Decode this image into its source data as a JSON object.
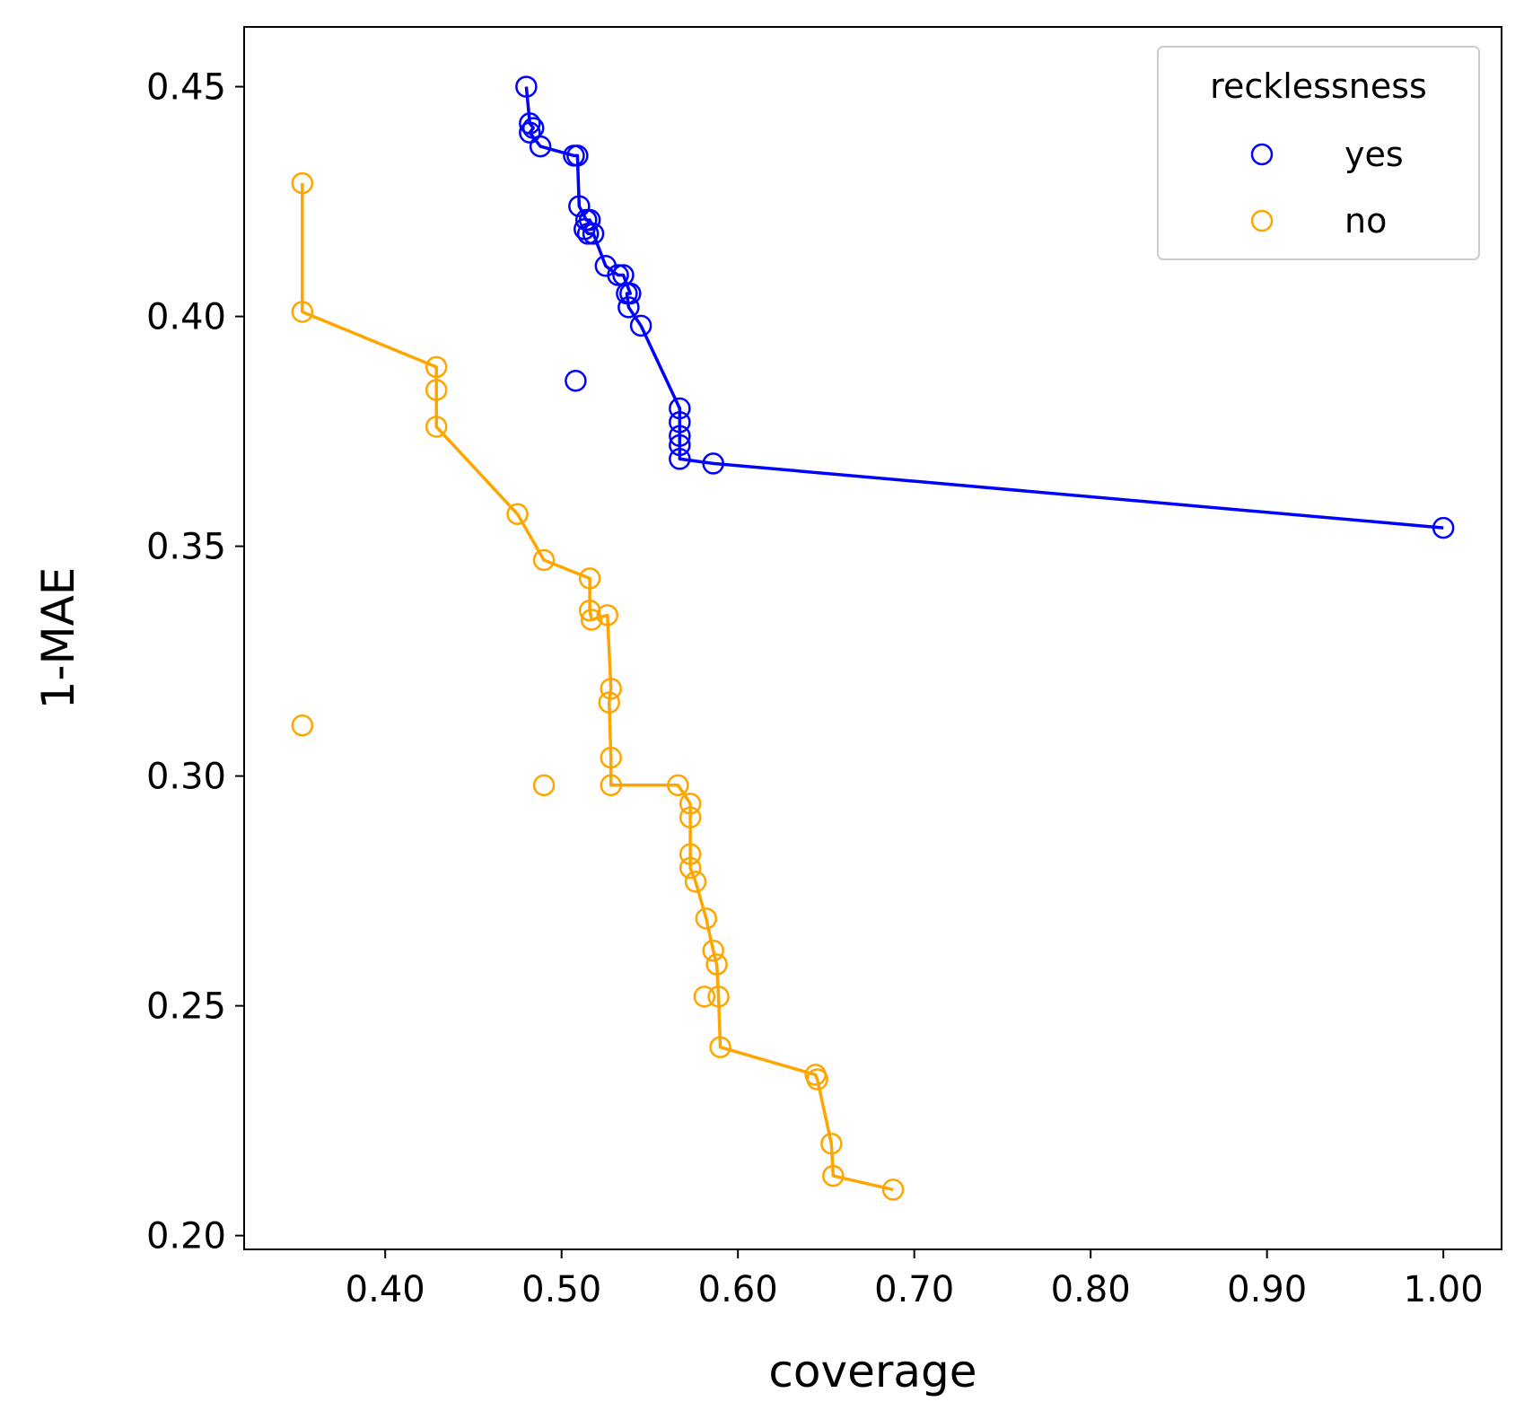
{
  "chart_data": {
    "type": "scatter",
    "xlabel": "coverage",
    "ylabel": "1-MAE",
    "xlim": [
      0.32,
      1.033
    ],
    "ylim": [
      0.197,
      0.463
    ],
    "xticks": [
      0.4,
      0.5,
      0.6,
      0.7,
      0.8,
      0.9,
      1.0
    ],
    "xtick_labels": [
      "0.40",
      "0.50",
      "0.60",
      "0.70",
      "0.80",
      "0.90",
      "1.00"
    ],
    "yticks": [
      0.2,
      0.25,
      0.3,
      0.35,
      0.4,
      0.45
    ],
    "ytick_labels": [
      "0.20",
      "0.25",
      "0.30",
      "0.35",
      "0.40",
      "0.45"
    ],
    "grid": false,
    "legend": {
      "title": "recklessness",
      "position": "top-right"
    },
    "series": [
      {
        "name": "yes",
        "color": "#0000ff",
        "marker": "hollow-circle",
        "frontier": [
          [
            0.48,
            0.45
          ],
          [
            0.482,
            0.442
          ],
          [
            0.484,
            0.441
          ],
          [
            0.482,
            0.44
          ],
          [
            0.488,
            0.437
          ],
          [
            0.507,
            0.435
          ],
          [
            0.509,
            0.435
          ],
          [
            0.51,
            0.424
          ],
          [
            0.514,
            0.421
          ],
          [
            0.516,
            0.421
          ],
          [
            0.513,
            0.419
          ],
          [
            0.515,
            0.418
          ],
          [
            0.518,
            0.418
          ],
          [
            0.525,
            0.411
          ],
          [
            0.532,
            0.409
          ],
          [
            0.535,
            0.409
          ],
          [
            0.539,
            0.405
          ],
          [
            0.537,
            0.405
          ],
          [
            0.538,
            0.402
          ],
          [
            0.545,
            0.398
          ],
          [
            0.567,
            0.38
          ],
          [
            0.567,
            0.377
          ],
          [
            0.567,
            0.374
          ],
          [
            0.567,
            0.372
          ],
          [
            0.567,
            0.369
          ],
          [
            0.586,
            0.368
          ],
          [
            1.0,
            0.354
          ]
        ],
        "outliers": [
          [
            0.508,
            0.386
          ]
        ]
      },
      {
        "name": "no",
        "color": "#ffa500",
        "marker": "hollow-circle",
        "frontier": [
          [
            0.353,
            0.429
          ],
          [
            0.353,
            0.401
          ],
          [
            0.429,
            0.389
          ],
          [
            0.429,
            0.384
          ],
          [
            0.429,
            0.376
          ],
          [
            0.475,
            0.357
          ],
          [
            0.49,
            0.347
          ],
          [
            0.516,
            0.343
          ],
          [
            0.516,
            0.336
          ],
          [
            0.517,
            0.334
          ],
          [
            0.526,
            0.335
          ],
          [
            0.528,
            0.319
          ],
          [
            0.527,
            0.316
          ],
          [
            0.528,
            0.304
          ],
          [
            0.528,
            0.298
          ],
          [
            0.566,
            0.298
          ],
          [
            0.573,
            0.294
          ],
          [
            0.573,
            0.291
          ],
          [
            0.573,
            0.283
          ],
          [
            0.573,
            0.28
          ],
          [
            0.576,
            0.277
          ],
          [
            0.582,
            0.269
          ],
          [
            0.586,
            0.262
          ],
          [
            0.588,
            0.259
          ],
          [
            0.589,
            0.252
          ],
          [
            0.59,
            0.241
          ],
          [
            0.644,
            0.235
          ],
          [
            0.645,
            0.234
          ],
          [
            0.653,
            0.22
          ],
          [
            0.654,
            0.213
          ],
          [
            0.688,
            0.21
          ]
        ],
        "outliers": [
          [
            0.353,
            0.311
          ],
          [
            0.49,
            0.298
          ],
          [
            0.581,
            0.252
          ]
        ]
      }
    ]
  }
}
